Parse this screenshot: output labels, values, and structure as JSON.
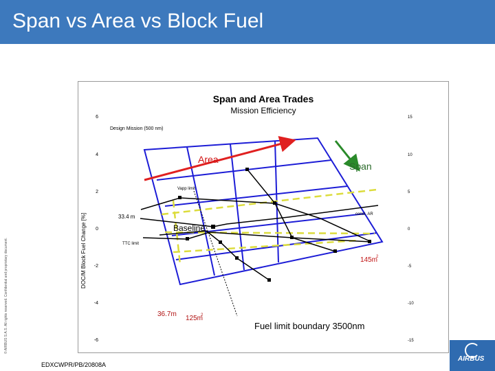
{
  "slide": {
    "title": "Span vs Area vs Block Fuel",
    "copyright": "© AIRBUS S.A.S. All rights reserved. Confidential and proprietary document.",
    "doc_ref": "EDXCWPR/PB/20808A",
    "logo_text": "AIRBUS"
  },
  "colors": {
    "header": "#3d79bd",
    "grid": "#1c1cd6",
    "dashed": "#dcdc3c",
    "area_arrow": "#e02020",
    "span_arrow": "#2a8a2a",
    "curve": "#000000"
  },
  "chart_data": {
    "type": "line",
    "title": "Span and Area Trades",
    "subtitle": "Mission Efficiency",
    "ylabel": "DOC/M Block Fuel Change [%]",
    "ylim_left": [
      -6,
      6
    ],
    "ylim_right": [
      -15,
      15
    ],
    "yticks_left": [
      "6",
      "4",
      "2",
      "0",
      "-2",
      "-4",
      "-6"
    ],
    "yticks_right": [
      "15",
      "10",
      "5",
      "0",
      "-5",
      "-10",
      "-15"
    ],
    "annotations": {
      "design_mission": "Design Mission (500 nm)",
      "area": "Area",
      "span": "Span",
      "vapp_limit": "Vapp limit",
      "const_ar": "const. AR",
      "span_33": "33.4 m",
      "baseline": "Baseline",
      "ttc_limit": "TTC limit",
      "area_145": "145m",
      "area_145_sup": "2",
      "span_36": "36.7m",
      "area_125": "125m",
      "area_125_sup": "2",
      "fuel_limit": "Fuel limit boundary 3500nm"
    },
    "series": [
      {
        "name": "const. AR",
        "points": [
          [
            -2.3,
            1.0
          ],
          [
            0.2,
            0.0
          ],
          [
            0.6,
            0.1
          ],
          [
            3.0,
            0.5
          ],
          [
            6.6,
            0.75
          ]
        ]
      },
      {
        "name": "Vapp limit",
        "points": [
          [
            -1.9,
            1.7
          ],
          [
            2.3,
            1.3
          ],
          [
            5.0,
            0.8
          ],
          [
            6.9,
            -0.7
          ]
        ]
      }
    ]
  }
}
